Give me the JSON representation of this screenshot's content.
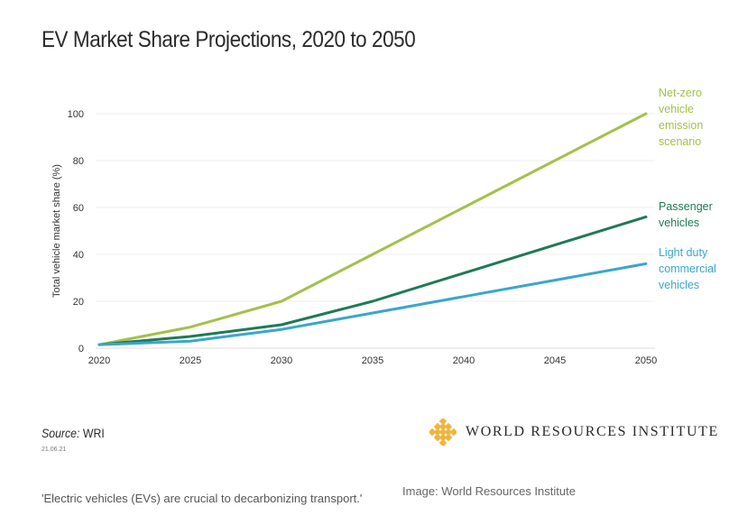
{
  "colors": {
    "netzero": "#a3c14a",
    "passenger": "#1f7a55",
    "ldcv": "#3aa6cc",
    "grid": "#eeeeee",
    "axis_text": "#333333",
    "logo": "#f0b43c"
  },
  "footer": {
    "source_label": "Source:",
    "source_value": "WRI",
    "date": "21.06.21",
    "org_name": "WORLD RESOURCES INSTITUTE",
    "logo_icon": "wri-logo-icon"
  },
  "caption": "'Electric vehicles (EVs) are crucial to decarbonizing transport.'",
  "credit": "Image: World Resources Institute",
  "chart_data": {
    "type": "line",
    "title": "EV Market Share Projections, 2020 to 2050",
    "xlabel": "",
    "ylabel": "Total vehicle market share (%)",
    "x": [
      2020,
      2025,
      2030,
      2035,
      2040,
      2045,
      2050
    ],
    "xticks": [
      "2020",
      "2025",
      "2030",
      "2035",
      "2040",
      "2045",
      "2050"
    ],
    "yticks": [
      "0",
      "20",
      "40",
      "60",
      "80",
      "100"
    ],
    "ylim": [
      0,
      100
    ],
    "grid": true,
    "legend": "inline-right",
    "series": [
      {
        "name": "Net-zero vehicle emission scenario",
        "label_lines": [
          "Net-zero",
          "vehicle",
          "emission",
          "scenario"
        ],
        "color_key": "netzero",
        "values": [
          1.5,
          9,
          20,
          40,
          60,
          80,
          100
        ]
      },
      {
        "name": "Passenger vehicles",
        "label_lines": [
          "Passenger",
          "vehicles"
        ],
        "color_key": "passenger",
        "values": [
          1.5,
          5,
          10,
          20,
          32,
          44,
          56
        ]
      },
      {
        "name": "Light duty commercial vehicles",
        "label_lines": [
          "Light duty",
          "commercial",
          "vehicles"
        ],
        "color_key": "ldcv",
        "values": [
          1.5,
          3,
          8,
          15,
          22,
          29,
          36
        ]
      }
    ]
  }
}
